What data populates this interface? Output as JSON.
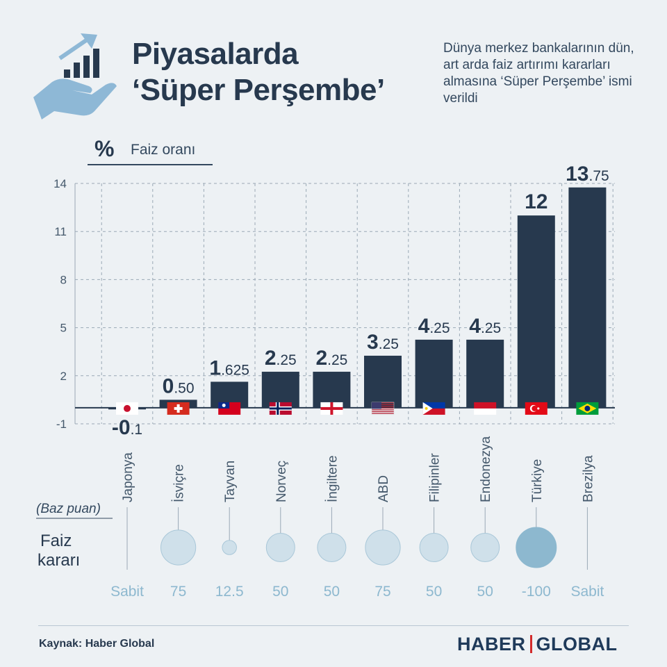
{
  "header": {
    "title_line1": "Piyasalarda",
    "title_line2": "‘Süper Perşembe’",
    "subtitle": "Dünya merkez bankalarının dün, art arda faiz artırımı kararları almasına ‘Süper Perşembe’ ismi verildi"
  },
  "unit": {
    "symbol": "%",
    "label": "Faiz oranı"
  },
  "decision": {
    "note": "(Baz puan)",
    "label_line1": "Faiz",
    "label_line2": "kararı"
  },
  "footer": {
    "source": "Kaynak: Haber Global",
    "logo_left": "HABER",
    "logo_right": "GLOBAL"
  },
  "colors": {
    "bar": "#27394e",
    "grid": "#9aa8b5",
    "bubble": "#cfe0ea",
    "bubble_strong": "#8db8cf",
    "decision_text": "#8db8cf",
    "country_text": "#44586b"
  },
  "chart_data": {
    "type": "bar",
    "title": "",
    "ylabel": "Faiz oranı",
    "ylim": [
      -1,
      14
    ],
    "yticks": [
      -1,
      2,
      5,
      8,
      11,
      14
    ],
    "grid": true,
    "categories": [
      "Japonya",
      "İsviçre",
      "Tayvan",
      "Norveç",
      "İngiltere",
      "ABD",
      "Filipinler",
      "Endonezya",
      "Türkiye",
      "Brezilya"
    ],
    "values": [
      -0.1,
      0.5,
      1.625,
      2.25,
      2.25,
      3.25,
      4.25,
      4.25,
      12,
      13.75
    ],
    "label_int": [
      "-0",
      "0",
      "1",
      "2",
      "2",
      "3",
      "4",
      "4",
      "12",
      "13"
    ],
    "label_dec": [
      ".1",
      ".50",
      ".625",
      ".25",
      ".25",
      ".25",
      ".25",
      ".25",
      "",
      ".75"
    ],
    "flags": [
      "japan-flag-icon",
      "switzerland-flag-icon",
      "taiwan-flag-icon",
      "norway-flag-icon",
      "england-flag-icon",
      "usa-flag-icon",
      "philippines-flag-icon",
      "indonesia-flag-icon",
      "turkey-flag-icon",
      "brazil-flag-icon"
    ],
    "decisions": [
      "Sabit",
      "75",
      "12.5",
      "50",
      "50",
      "75",
      "50",
      "50",
      "-100",
      "Sabit"
    ],
    "decision_bp": [
      0,
      75,
      12.5,
      50,
      50,
      75,
      50,
      50,
      -100,
      0
    ]
  }
}
